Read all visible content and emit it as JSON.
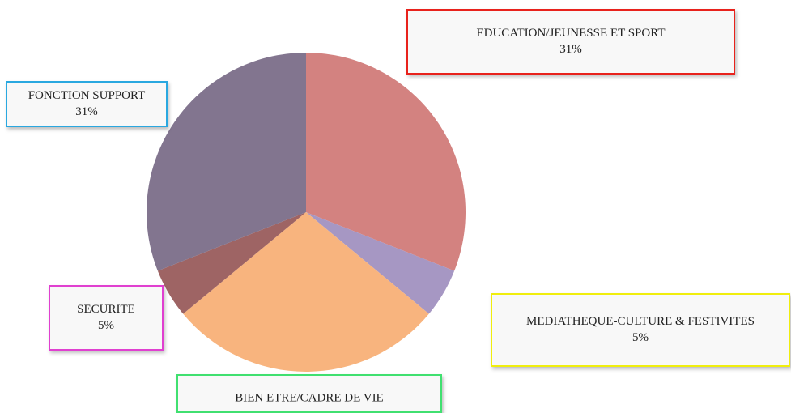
{
  "chart_data": {
    "type": "pie",
    "categories": [
      "EDUCATION/JEUNESSE ET SPORT",
      "MEDIATHEQUE-CULTURE & FESTIVITES",
      "BIEN ETRE/CADRE DE VIE",
      "SECURITE",
      "FONCTION SUPPORT"
    ],
    "values": [
      31,
      5,
      28,
      5,
      31
    ],
    "value_labels": [
      "31%",
      "5%",
      null,
      "5%",
      "31%"
    ],
    "colors": [
      "#d38280",
      "#a697c3",
      "#f8b47e",
      "#9e6464",
      "#82758f"
    ],
    "label_border_colors": [
      "#e8201c",
      "#f0ee10",
      "#40e070",
      "#e040d0",
      "#29a8e0"
    ]
  }
}
